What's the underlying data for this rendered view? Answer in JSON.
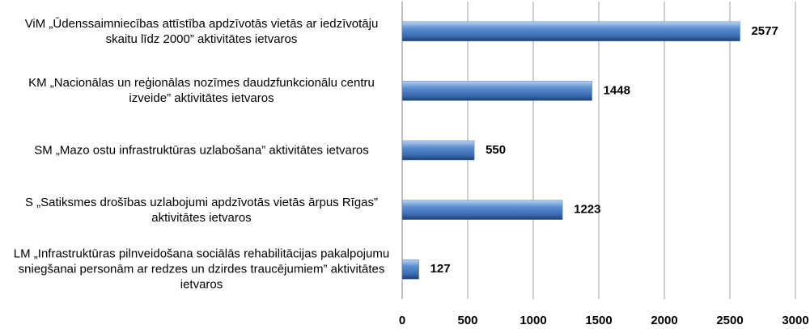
{
  "chart_data": {
    "type": "barh",
    "categories": [
      "ViM „Ūdenssaimniecības attīstība apdzīvotās vietās ar iedzīvotāju skaitu līdz 2000” aktivitātes ietvaros",
      "KM „Nacionālas un reģionālas nozīmes daudzfunkcionālu centru izveide” aktivitātes ietvaros",
      "SM „Mazo ostu infrastruktūras uzlabošana” aktivitātes ietvaros",
      "S „Satiksmes drošības uzlabojumi apdzīvotās vietās ārpus Rīgas” aktivitātes ietvaros",
      "LM „Infrastruktūras pilnveidošana sociālās rehabilitācijas pakalpojumu sniegšanai personām ar redzes un dzirdes traucējumiem” aktivitātes ietvaros"
    ],
    "values": [
      2577,
      1448,
      550,
      1223,
      127
    ],
    "color": "#4f81bd",
    "xlim": [
      0,
      3000
    ],
    "xticks": [
      0,
      500,
      1000,
      1500,
      2000,
      2500,
      3000
    ],
    "grid": true
  }
}
